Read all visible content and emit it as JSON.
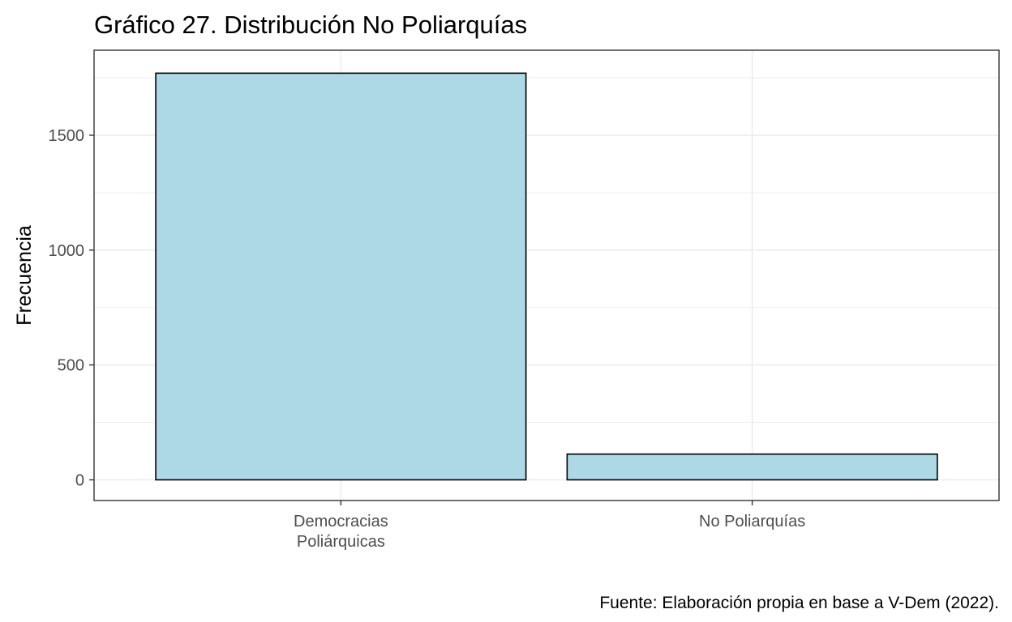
{
  "chart_data": {
    "type": "bar",
    "title": "Gráfico 27. Distribución No Poliarquías",
    "xlabel": "",
    "ylabel": "Frecuencia",
    "categories": [
      [
        "Democracias",
        "Poliárquicas"
      ],
      [
        "No Poliarquías"
      ]
    ],
    "values": [
      1770,
      112
    ],
    "ylim": [
      -90,
      1870
    ],
    "yticks": [
      0,
      500,
      1000,
      1500
    ],
    "ytick_labels": [
      "0",
      "500",
      "1000",
      "1500"
    ],
    "grid": true,
    "bar_fill": "#ADD8E6",
    "bar_stroke": "#000000",
    "caption": "Fuente: Elaboración propia en base a V-Dem (2022)."
  }
}
